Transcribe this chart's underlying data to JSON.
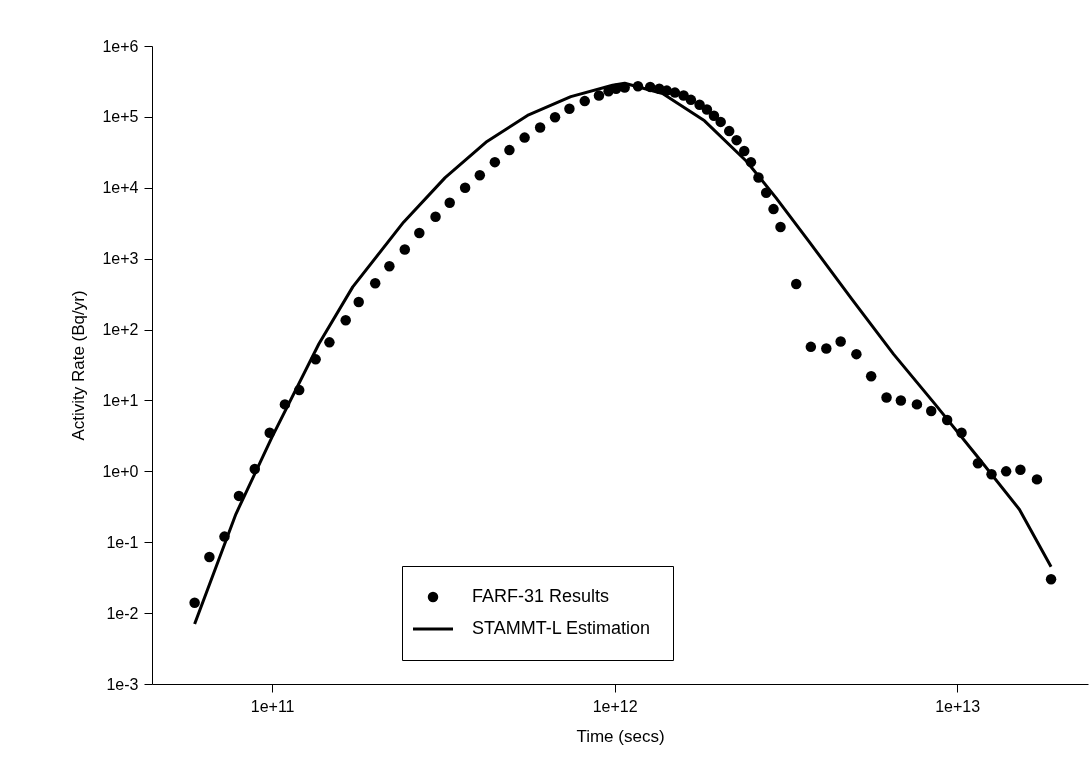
{
  "chart_data": {
    "type": "scatter",
    "xlabel": "Time (secs)",
    "ylabel": "Activity Rate (Bq/yr)",
    "log": "xy",
    "grid": false,
    "legend": "bottom",
    "line_style": "solid",
    "xlim": [
      44600000000.0,
      24100000000000.0
    ],
    "ylim": [
      0.001,
      1000000
    ],
    "xticks": [
      {
        "value": 100000000000.0,
        "label": "1e+11"
      },
      {
        "value": 1000000000000.0,
        "label": "1e+12"
      },
      {
        "value": 10000000000000.0,
        "label": "1e+13"
      }
    ],
    "yticks": [
      {
        "value": 0.001,
        "label": "1e-3"
      },
      {
        "value": 0.01,
        "label": "1e-2"
      },
      {
        "value": 0.1,
        "label": "1e-1"
      },
      {
        "value": 1,
        "label": "1e+0"
      },
      {
        "value": 10,
        "label": "1e+1"
      },
      {
        "value": 100,
        "label": "1e+2"
      },
      {
        "value": 1000,
        "label": "1e+3"
      },
      {
        "value": 10000,
        "label": "1e+4"
      },
      {
        "value": 100000,
        "label": "1e+5"
      },
      {
        "value": 1000000,
        "label": "1e+6"
      }
    ],
    "series": [
      {
        "name": "FARF-31 Results",
        "marker": "circle",
        "color": "#000000",
        "x": [
          59400000000.0,
          65600000000.0,
          72600000000.0,
          80000000000.0,
          89000000000.0,
          98400000000.0,
          109000000000.0,
          120000000000.0,
          134000000000.0,
          147000000000.0,
          164000000000.0,
          179000000000.0,
          200000000000.0,
          220000000000.0,
          244000000000.0,
          269000000000.0,
          300000000000.0,
          330000000000.0,
          366000000000.0,
          404000000000.0,
          447000000000.0,
          493000000000.0,
          546000000000.0,
          606000000000.0,
          670000000000.0,
          738000000000.0,
          818000000000.0,
          900000000000.0,
          960000000000.0,
          1010000000000.0,
          1070000000000.0,
          1170000000000.0,
          1270000000000.0,
          1350000000000.0,
          1420000000000.0,
          1500000000000.0,
          1590000000000.0,
          1670000000000.0,
          1770000000000.0,
          1860000000000.0,
          1950000000000.0,
          2040000000000.0,
          2160000000000.0,
          2270000000000.0,
          2390000000000.0,
          2500000000000.0,
          2630000000000.0,
          2770000000000.0,
          2910000000000.0,
          3050000000000.0,
          3390000000000.0,
          3740000000000.0,
          4150000000000.0,
          4570000000000.0,
          5080000000000.0,
          5610000000000.0,
          6220000000000.0,
          6850000000000.0,
          7630000000000.0,
          8400000000000.0,
          9350000000000.0,
          10300000000000.0,
          11500000000000.0,
          12600000000000.0,
          13900000000000.0,
          15300000000000.0,
          17100000000000.0,
          18800000000000.0
        ],
        "values": [
          0.014,
          0.062,
          0.12,
          0.45,
          1.08,
          3.5,
          8.8,
          14,
          38,
          66,
          135,
          245,
          450,
          780,
          1350,
          2300,
          3900,
          6150,
          10000,
          15000,
          23000,
          34000,
          51000,
          71000,
          99000,
          130000,
          167000,
          200000,
          230000,
          250000,
          260000,
          270000,
          265000,
          250000,
          235000,
          220000,
          200000,
          174000,
          148000,
          127000,
          104000,
          85000,
          63000,
          47000,
          33000,
          23000,
          14000,
          8500,
          5000,
          2800,
          440,
          57,
          54,
          68,
          45,
          22,
          11,
          10,
          8.8,
          7.1,
          5.3,
          3.5,
          1.3,
          0.91,
          1.0,
          1.05,
          0.77,
          0.03
        ]
      },
      {
        "name": "STAMMT-L Estimation",
        "type": "line",
        "marker": "none",
        "color": "#000000",
        "x": [
          59400000000.0,
          78400000000.0,
          100000000000.0,
          137000000000.0,
          172000000000.0,
          242000000000.0,
          320000000000.0,
          424000000000.0,
          561000000000.0,
          745000000000.0,
          986000000000.0,
          1070000000000.0,
          1380000000000.0,
          1830000000000.0,
          2430000000000.0,
          2960000000000.0,
          3710000000000.0,
          4920000000000.0,
          6520000000000.0,
          8630000000000.0,
          11500000000000.0,
          15200000000000.0,
          18800000000000.0
        ],
        "values": [
          0.007,
          0.25,
          3.06,
          63,
          400,
          3270,
          13900,
          45000,
          107000,
          193000,
          280000,
          298000,
          214000,
          88000,
          23500,
          7200,
          1700,
          270,
          45,
          8.8,
          1.58,
          0.29,
          0.045
        ]
      }
    ]
  }
}
